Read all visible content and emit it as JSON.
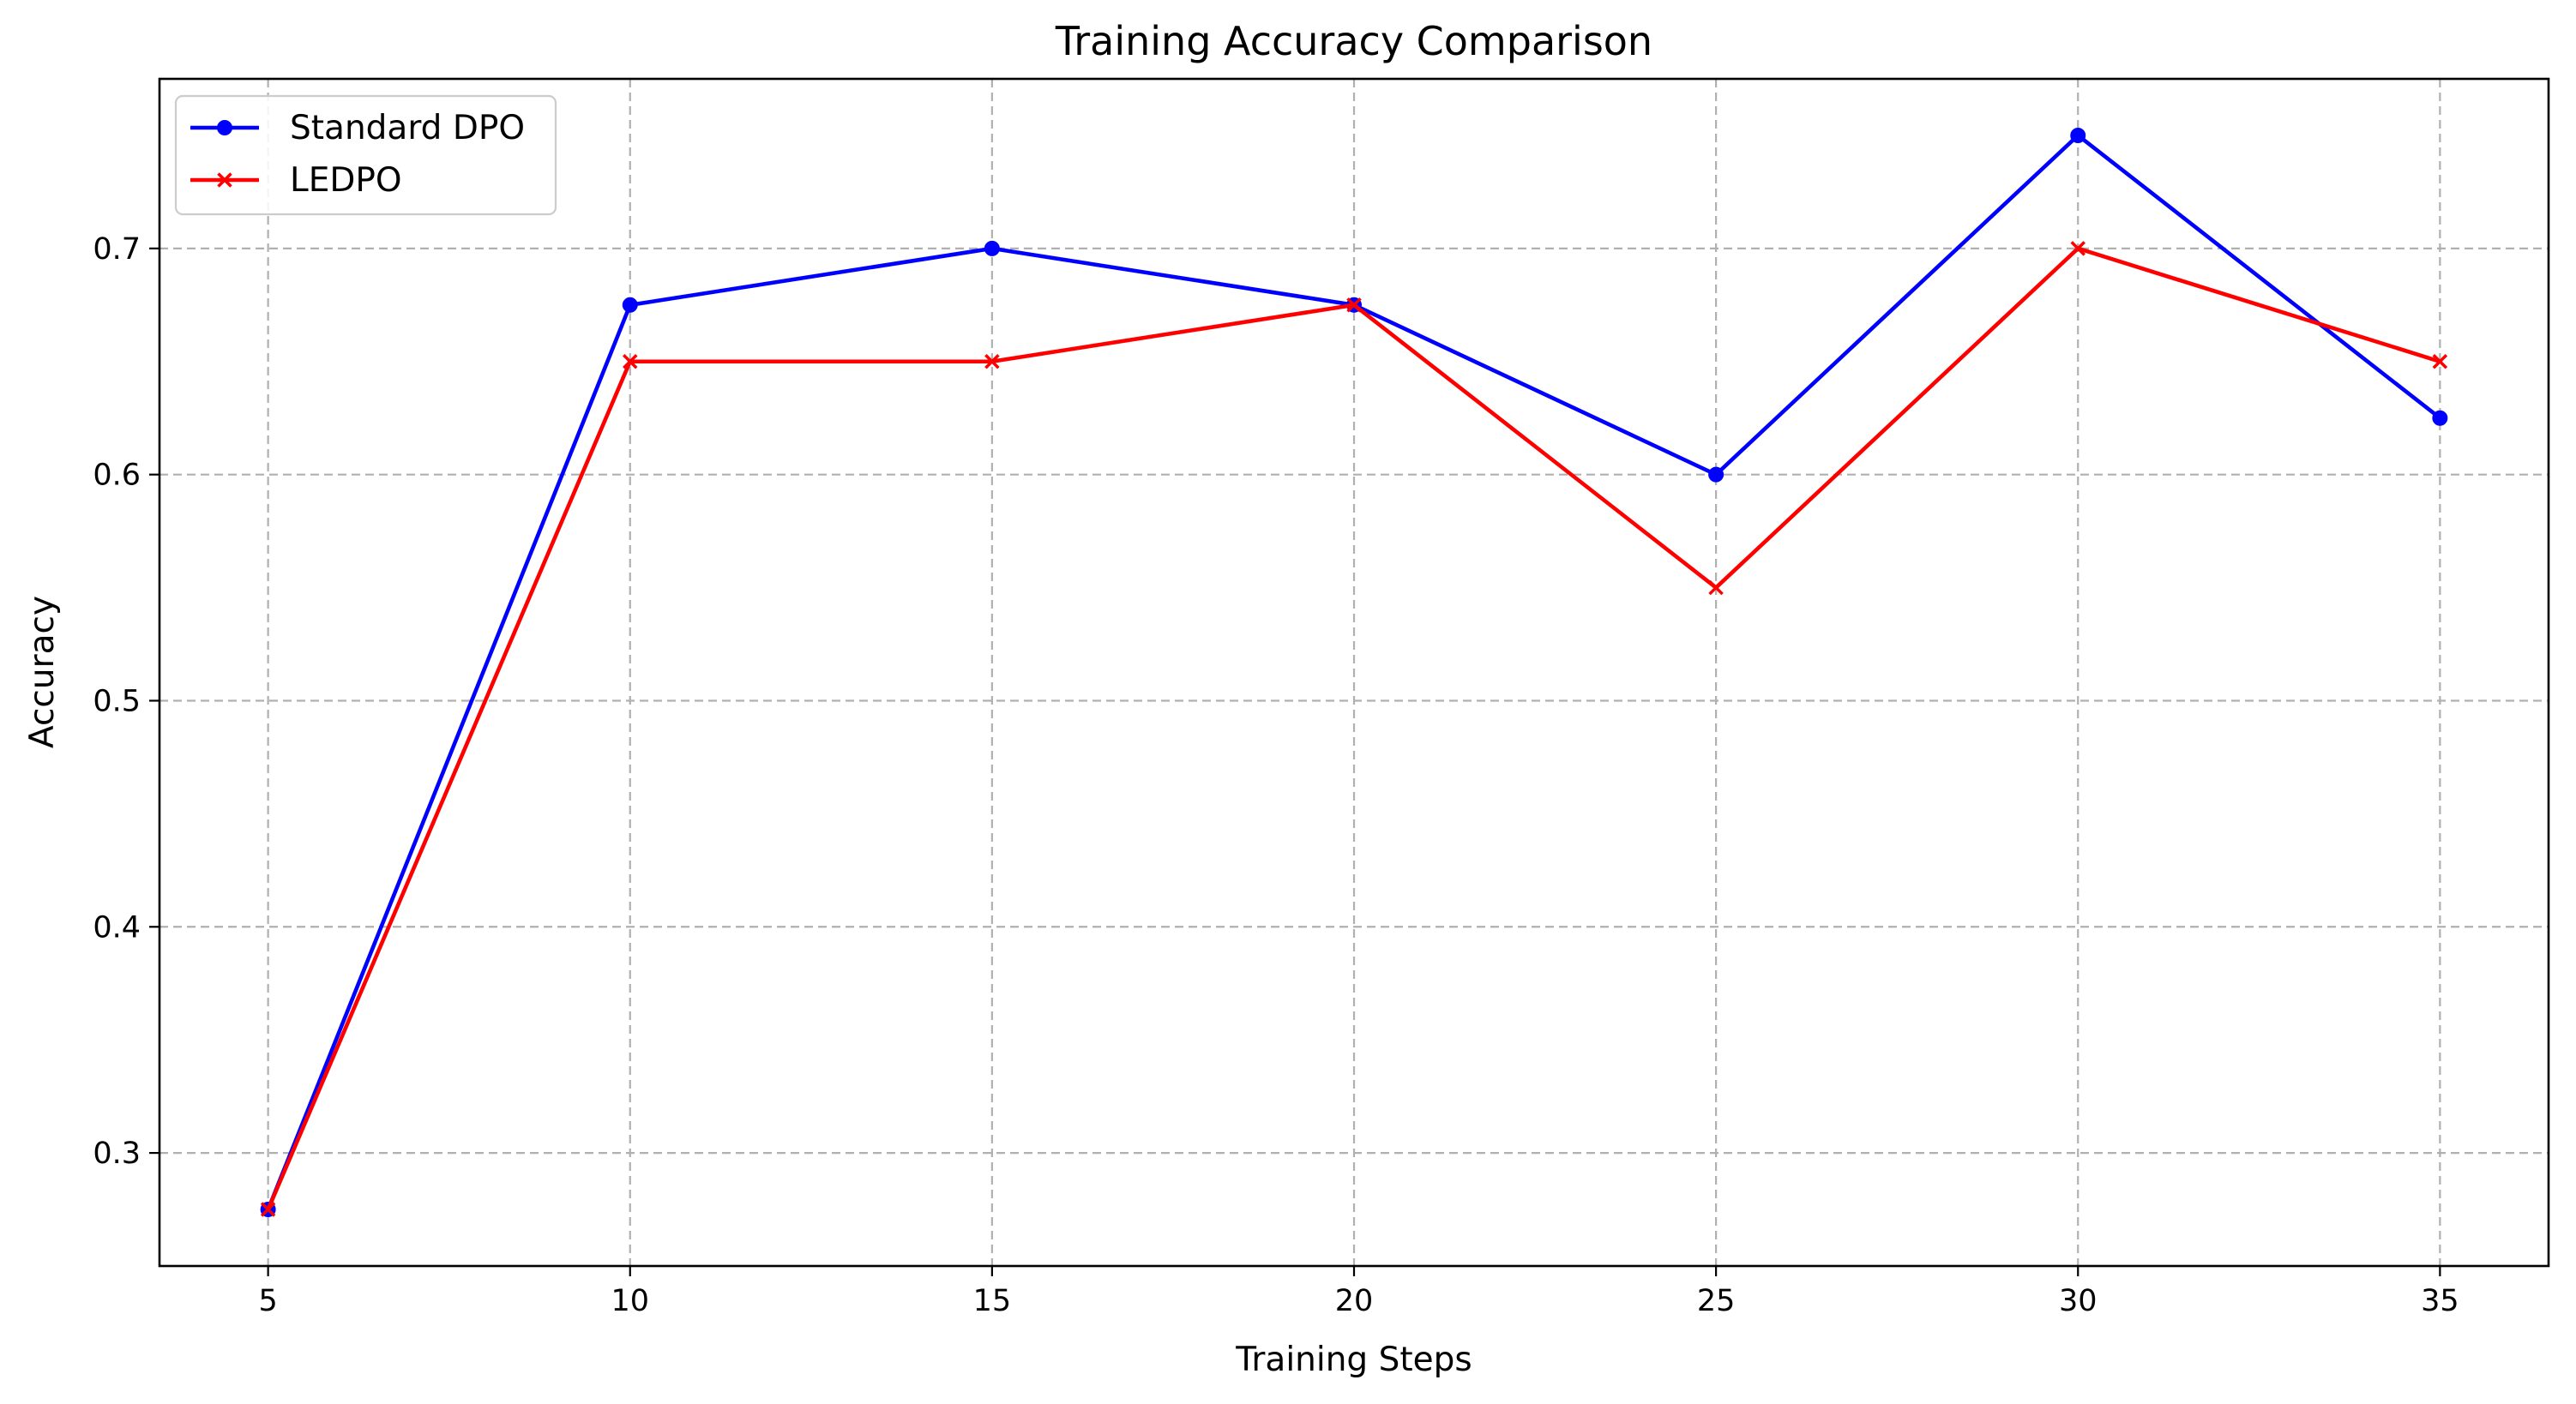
{
  "chart_data": {
    "type": "line",
    "title": "Training Accuracy Comparison",
    "xlabel": "Training Steps",
    "ylabel": "Accuracy",
    "x": [
      5,
      10,
      15,
      20,
      25,
      30,
      35
    ],
    "xlim": [
      3.5,
      36.5
    ],
    "ylim": [
      0.25,
      0.775
    ],
    "xticks": [
      5,
      10,
      15,
      20,
      25,
      30,
      35
    ],
    "yticks": [
      0.3,
      0.4,
      0.5,
      0.6,
      0.7
    ],
    "xtick_labels": [
      "5",
      "10",
      "15",
      "20",
      "25",
      "30",
      "35"
    ],
    "ytick_labels": [
      "0.3",
      "0.4",
      "0.5",
      "0.6",
      "0.7"
    ],
    "grid": true,
    "legend_position": "top-left",
    "series": [
      {
        "name": "Standard DPO",
        "color": "#0000ff",
        "marker": "circle",
        "values": [
          0.275,
          0.675,
          0.7,
          0.675,
          0.6,
          0.75,
          0.625
        ]
      },
      {
        "name": "LEDPO",
        "color": "#ff0000",
        "marker": "x",
        "values": [
          0.275,
          0.65,
          0.65,
          0.675,
          0.55,
          0.7,
          0.65
        ]
      }
    ]
  }
}
